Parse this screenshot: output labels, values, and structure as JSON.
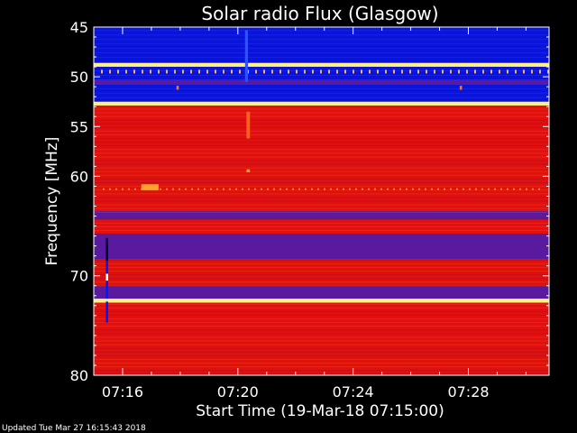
{
  "chart_data": {
    "type": "heatmap",
    "title": "Solar radio Flux (Glasgow)",
    "xlabel": "Start Time (19-Mar-18 07:15:00)",
    "ylabel": "Frequency [MHz]",
    "x_range_minutes": [
      0,
      15.8
    ],
    "ylim": [
      45,
      80
    ],
    "y_inverted": true,
    "x_ticks": [
      {
        "label": "07:16",
        "minute": 1
      },
      {
        "label": "07:20",
        "minute": 5
      },
      {
        "label": "07:24",
        "minute": 9
      },
      {
        "label": "07:28",
        "minute": 13
      }
    ],
    "y_ticks": [
      45,
      50,
      55,
      60,
      70,
      80
    ],
    "colors": {
      "low": "#0a14d8",
      "mid": "#5a1aa0",
      "high": "#e01010",
      "peak": "#ffee80"
    },
    "bands_mhz": [
      {
        "from": 45.0,
        "to": 48.6,
        "level": "low"
      },
      {
        "from": 48.6,
        "to": 49.0,
        "level": "peak"
      },
      {
        "from": 49.0,
        "to": 50.3,
        "level": "low"
      },
      {
        "from": 50.3,
        "to": 50.8,
        "level": "mid"
      },
      {
        "from": 50.8,
        "to": 52.5,
        "level": "low"
      },
      {
        "from": 52.5,
        "to": 52.9,
        "level": "peak"
      },
      {
        "from": 52.9,
        "to": 63.5,
        "level": "high"
      },
      {
        "from": 63.5,
        "to": 64.3,
        "level": "mid"
      },
      {
        "from": 64.3,
        "to": 65.8,
        "level": "high"
      },
      {
        "from": 65.8,
        "to": 68.3,
        "level": "mid"
      },
      {
        "from": 68.3,
        "to": 71.0,
        "level": "high"
      },
      {
        "from": 71.0,
        "to": 72.3,
        "level": "mid"
      },
      {
        "from": 72.3,
        "to": 72.7,
        "level": "peak"
      },
      {
        "from": 72.7,
        "to": 80.0,
        "level": "high"
      }
    ]
  },
  "footer": "Updated Tue Mar 27 16:15:43 2018"
}
